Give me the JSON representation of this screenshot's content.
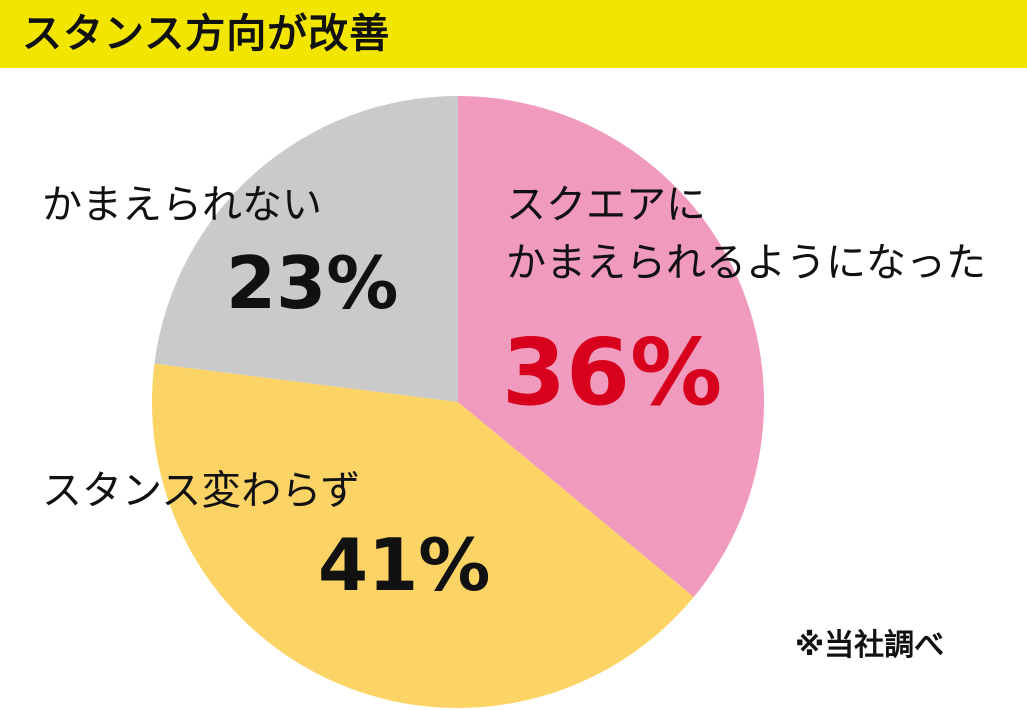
{
  "title": "スタンス方向が改善",
  "note": "※当社調べ",
  "colors": {
    "title_bar": "#f2e600",
    "slice_square": "#f09bbd",
    "slice_unchanged": "#fcd365",
    "slice_cannot": "#cacaca",
    "highlight_text": "#d7001d",
    "text": "#111111"
  },
  "chart_data": {
    "type": "pie",
    "start": "12 o'clock",
    "direction": "clockwise",
    "slices": [
      {
        "key": "square",
        "label_lines": [
          "スクエアに",
          "かまえられるようになった"
        ],
        "value": 36,
        "value_label": "36%",
        "color": "#f09bbd",
        "value_color": "#d7001d"
      },
      {
        "key": "unchanged",
        "label_lines": [
          "スタンス変わらず"
        ],
        "value": 41,
        "value_label": "41%",
        "color": "#fcd365",
        "value_color": "#111111"
      },
      {
        "key": "cannot",
        "label_lines": [
          "かまえられない"
        ],
        "value": 23,
        "value_label": "23%",
        "color": "#cacaca",
        "value_color": "#111111"
      }
    ]
  }
}
